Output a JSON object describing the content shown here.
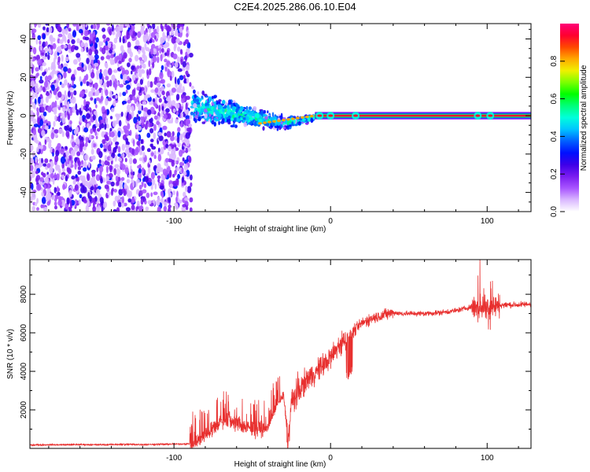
{
  "title": "C2E4.2025.286.06.10.E04",
  "chart_data": [
    {
      "type": "heatmap",
      "title": "C2E4.2025.286.06.10.E04",
      "xlabel": "Height of straight line (km)",
      "ylabel": "Frequency (Hz)",
      "xlim": [
        -192,
        128
      ],
      "ylim": [
        -50,
        48
      ],
      "x_ticks": [
        -100,
        0,
        100
      ],
      "y_ticks": [
        -40,
        -20,
        0,
        20,
        40
      ],
      "colorbar": {
        "label": "Normalized spectral amplitude",
        "range": [
          0.0,
          1.0
        ],
        "ticks": [
          0.0,
          0.2,
          0.4,
          0.6,
          0.8
        ],
        "tick_labels": [
          "0.0",
          "0.2",
          "0.4",
          "0.6",
          "0.8"
        ],
        "colors": [
          "#ffffff",
          "#dab8ff",
          "#a855ff",
          "#7a1cf0",
          "#3d00e8",
          "#0010ff",
          "#0060ff",
          "#00c4ff",
          "#00ffdc",
          "#00ff7a",
          "#00ff00",
          "#7cff00",
          "#f0f000",
          "#ffa800",
          "#ff4800",
          "#ff0030",
          "#ff0078"
        ]
      },
      "regions": [
        {
          "name": "broadband noise",
          "x_range": [
            -192,
            -89
          ],
          "freq_range": [
            -50,
            48
          ],
          "amplitude": [
            0.1,
            0.35
          ]
        },
        {
          "name": "transition scatter",
          "x_range": [
            -89,
            -10
          ],
          "freq_center": [
            5,
            -4
          ],
          "amplitude": [
            0.2,
            0.55
          ]
        },
        {
          "name": "carrier line",
          "x_range": [
            -10,
            128
          ],
          "freq": 0,
          "amplitude": 0.95
        }
      ]
    },
    {
      "type": "line",
      "title": "",
      "xlabel": "Height of straight line (km)",
      "ylabel": "SNR (10 * v/v)",
      "xlim": [
        -192,
        128
      ],
      "ylim": [
        0,
        9800
      ],
      "x_ticks": [
        -100,
        0,
        100
      ],
      "y_ticks": [
        2000,
        4000,
        6000,
        8000
      ],
      "series": [
        {
          "name": "SNR",
          "color": "#e8302f",
          "x": [
            -192,
            -180,
            -170,
            -160,
            -150,
            -140,
            -130,
            -120,
            -110,
            -100,
            -90,
            -85,
            -80,
            -75,
            -70,
            -65,
            -60,
            -55,
            -50,
            -45,
            -40,
            -35,
            -30,
            -27,
            -25,
            -20,
            -15,
            -10,
            -5,
            0,
            5,
            10,
            15,
            20,
            25,
            30,
            35,
            40,
            45,
            50,
            60,
            70,
            80,
            90,
            95,
            100,
            105,
            110,
            120,
            128
          ],
          "values": [
            180,
            190,
            185,
            200,
            190,
            200,
            210,
            200,
            210,
            220,
            240,
            350,
            700,
            1050,
            1400,
            1450,
            1300,
            1150,
            1000,
            1000,
            1100,
            2100,
            2800,
            300,
            2400,
            3000,
            3600,
            3900,
            4300,
            4700,
            5300,
            5700,
            6100,
            6500,
            6700,
            6850,
            6950,
            7050,
            7000,
            7000,
            7000,
            7050,
            7150,
            7350,
            7300,
            7400,
            7400,
            7450,
            7450,
            7500
          ]
        }
      ]
    }
  ]
}
